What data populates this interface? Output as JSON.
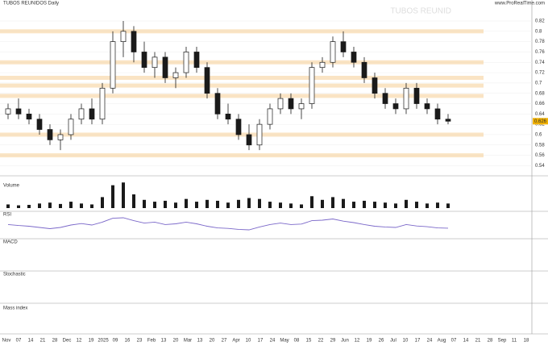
{
  "chart_data": {
    "type": "candlestick",
    "title": "TUBOS REUNIDOS Daily",
    "watermark": "TUBOS REUNID",
    "source": "www.ProRealTime.com",
    "last_label": "0.626",
    "panels": [
      "Volume",
      "RSI",
      "MACD",
      "Stochastic",
      "Mass index"
    ],
    "up_color": "#1a1a1a",
    "down_color": "#1a1a1a",
    "open": [
      0.64,
      0.65,
      0.64,
      0.63,
      0.61,
      0.59,
      0.6,
      0.63,
      0.65,
      0.63,
      0.69,
      0.78,
      0.8,
      0.76,
      0.73,
      0.75,
      0.71,
      0.72,
      0.76,
      0.73,
      0.68,
      0.64,
      0.63,
      0.6,
      0.58,
      0.62,
      0.65,
      0.67,
      0.65,
      0.66,
      0.73,
      0.74,
      0.78,
      0.76,
      0.74,
      0.71,
      0.68,
      0.66,
      0.65,
      0.69,
      0.66,
      0.65,
      0.63
    ],
    "high": [
      0.66,
      0.67,
      0.65,
      0.64,
      0.62,
      0.61,
      0.64,
      0.66,
      0.67,
      0.7,
      0.8,
      0.82,
      0.81,
      0.78,
      0.76,
      0.76,
      0.73,
      0.77,
      0.77,
      0.74,
      0.69,
      0.66,
      0.64,
      0.62,
      0.63,
      0.66,
      0.68,
      0.68,
      0.67,
      0.74,
      0.75,
      0.79,
      0.8,
      0.77,
      0.75,
      0.72,
      0.69,
      0.67,
      0.7,
      0.7,
      0.67,
      0.66,
      0.64
    ],
    "low": [
      0.63,
      0.63,
      0.62,
      0.6,
      0.58,
      0.57,
      0.59,
      0.62,
      0.62,
      0.62,
      0.68,
      0.75,
      0.74,
      0.72,
      0.71,
      0.7,
      0.69,
      0.71,
      0.72,
      0.67,
      0.63,
      0.62,
      0.59,
      0.57,
      0.57,
      0.61,
      0.64,
      0.64,
      0.63,
      0.65,
      0.72,
      0.73,
      0.75,
      0.73,
      0.7,
      0.67,
      0.65,
      0.64,
      0.64,
      0.65,
      0.64,
      0.62,
      0.62
    ],
    "close": [
      0.65,
      0.64,
      0.63,
      0.61,
      0.59,
      0.6,
      0.63,
      0.65,
      0.63,
      0.69,
      0.78,
      0.8,
      0.76,
      0.73,
      0.75,
      0.71,
      0.72,
      0.76,
      0.73,
      0.68,
      0.64,
      0.63,
      0.6,
      0.58,
      0.62,
      0.65,
      0.67,
      0.65,
      0.66,
      0.73,
      0.74,
      0.78,
      0.76,
      0.74,
      0.71,
      0.68,
      0.66,
      0.65,
      0.69,
      0.66,
      0.65,
      0.63,
      0.626
    ],
    "volume": [
      400000,
      300000,
      350000,
      500000,
      600000,
      450000,
      700000,
      500000,
      400000,
      1200000,
      2500000,
      2800000,
      1500000,
      900000,
      700000,
      800000,
      600000,
      1000000,
      700000,
      900000,
      800000,
      600000,
      900000,
      1100000,
      1000000,
      700000,
      600000,
      500000,
      400000,
      1300000,
      900000,
      1200000,
      1000000,
      700000,
      800000,
      700000,
      600000,
      500000,
      900000,
      700000,
      500000,
      600000,
      500000
    ],
    "volume_color": "#1a1a1a",
    "volume_lim": [
      0,
      3000000
    ],
    "rsi": [
      52,
      48,
      45,
      40,
      35,
      40,
      50,
      56,
      50,
      62,
      78,
      80,
      68,
      58,
      62,
      52,
      55,
      62,
      55,
      45,
      38,
      36,
      32,
      30,
      42,
      52,
      58,
      52,
      54,
      68,
      70,
      75,
      66,
      60,
      52,
      45,
      42,
      40,
      52,
      46,
      43,
      38,
      37
    ],
    "rsi_color": "#7b68c9",
    "rsi_lim": [
      0,
      100
    ],
    "levels": [
      0.8,
      0.74,
      0.71,
      0.695,
      0.675,
      0.6,
      0.56
    ],
    "level_color": "#f5c98a",
    "ylim": [
      0.525,
      0.845
    ],
    "yticks": [
      0.54,
      0.56,
      0.58,
      0.6,
      0.62,
      0.64,
      0.66,
      0.68,
      0.7,
      0.72,
      0.74,
      0.76,
      0.78,
      0.8,
      0.82
    ],
    "xticks": [
      "Nov",
      "07",
      "14",
      "21",
      "28",
      "Dec",
      "12",
      "19",
      "2025",
      "09",
      "16",
      "23",
      "Feb",
      "13",
      "20",
      "Mar",
      "13",
      "20",
      "27",
      "Apr",
      "10",
      "17",
      "24",
      "May",
      "08",
      "15",
      "22",
      "29",
      "Jun",
      "12",
      "19",
      "26",
      "Jul",
      "10",
      "17",
      "24",
      "Aug",
      "07",
      "14",
      "21",
      "28",
      "Sep",
      "11",
      "18"
    ]
  }
}
